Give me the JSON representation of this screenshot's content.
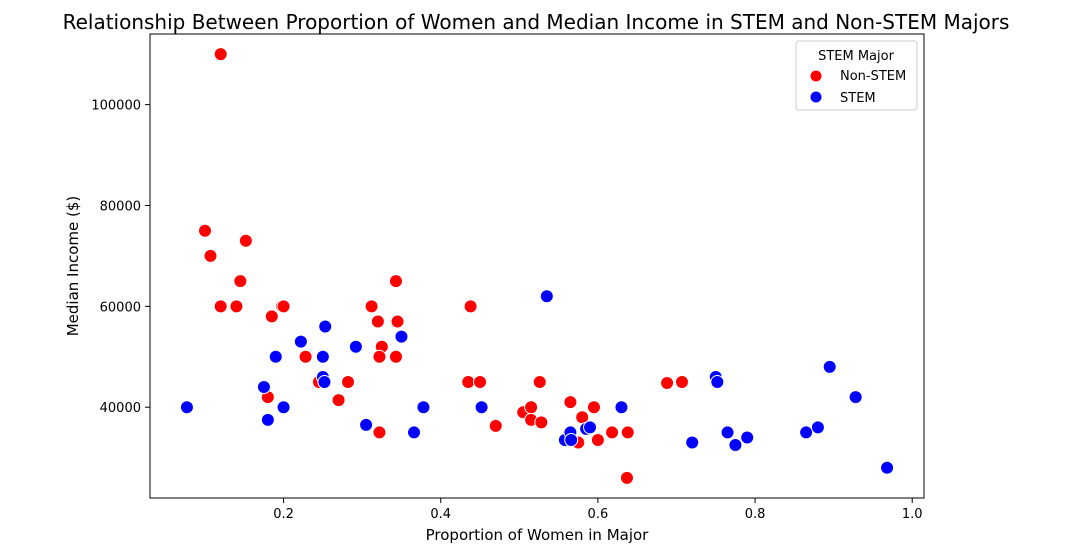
{
  "chart_data": {
    "type": "scatter",
    "title": "Relationship Between Proportion of Women and Median Income in STEM and Non-STEM Majors",
    "xlabel": "Proportion of Women in Major",
    "ylabel": "Median Income ($)",
    "xlim": [
      0.03,
      1.015
    ],
    "ylim": [
      22000,
      114000
    ],
    "xticks": [
      0.2,
      0.4,
      0.6,
      0.8,
      1.0
    ],
    "xtick_labels": [
      "0.2",
      "0.4",
      "0.6",
      "0.8",
      "1.0"
    ],
    "yticks": [
      40000,
      60000,
      80000,
      100000
    ],
    "ytick_labels": [
      "40000",
      "60000",
      "80000",
      "100000"
    ],
    "grid": false,
    "legend": {
      "title": "STEM Major",
      "placement": "top-right",
      "entries": [
        "Non-STEM",
        "STEM"
      ]
    },
    "series": [
      {
        "name": "Non-STEM",
        "color": "#ff0000",
        "points": [
          [
            0.12,
            110000
          ],
          [
            0.1,
            75000
          ],
          [
            0.107,
            70000
          ],
          [
            0.152,
            73000
          ],
          [
            0.145,
            65000
          ],
          [
            0.12,
            60000
          ],
          [
            0.14,
            60000
          ],
          [
            0.198,
            60000
          ],
          [
            0.2,
            60000
          ],
          [
            0.185,
            58000
          ],
          [
            0.228,
            50000
          ],
          [
            0.245,
            45000
          ],
          [
            0.18,
            42000
          ],
          [
            0.282,
            45000
          ],
          [
            0.27,
            41400
          ],
          [
            0.322,
            35000
          ],
          [
            0.312,
            60000
          ],
          [
            0.32,
            57000
          ],
          [
            0.345,
            57000
          ],
          [
            0.343,
            65000
          ],
          [
            0.325,
            52000
          ],
          [
            0.322,
            50000
          ],
          [
            0.343,
            50000
          ],
          [
            0.438,
            60000
          ],
          [
            0.435,
            45000
          ],
          [
            0.45,
            45000
          ],
          [
            0.47,
            36300
          ],
          [
            0.505,
            39000
          ],
          [
            0.515,
            40000
          ],
          [
            0.515,
            37500
          ],
          [
            0.528,
            37000
          ],
          [
            0.526,
            45000
          ],
          [
            0.565,
            41000
          ],
          [
            0.58,
            38000
          ],
          [
            0.575,
            33000
          ],
          [
            0.595,
            40000
          ],
          [
            0.6,
            33500
          ],
          [
            0.618,
            35000
          ],
          [
            0.638,
            35000
          ],
          [
            0.637,
            26000
          ],
          [
            0.688,
            44800
          ],
          [
            0.707,
            45000
          ]
        ]
      },
      {
        "name": "STEM",
        "color": "#0000ff",
        "points": [
          [
            0.077,
            40000
          ],
          [
            0.175,
            44000
          ],
          [
            0.18,
            37500
          ],
          [
            0.19,
            50000
          ],
          [
            0.2,
            40000
          ],
          [
            0.222,
            53000
          ],
          [
            0.25,
            46000
          ],
          [
            0.252,
            45000
          ],
          [
            0.25,
            50000
          ],
          [
            0.253,
            56000
          ],
          [
            0.292,
            52000
          ],
          [
            0.305,
            36500
          ],
          [
            0.35,
            54000
          ],
          [
            0.366,
            35000
          ],
          [
            0.378,
            40000
          ],
          [
            0.452,
            40000
          ],
          [
            0.535,
            62000
          ],
          [
            0.558,
            33500
          ],
          [
            0.565,
            35000
          ],
          [
            0.566,
            33500
          ],
          [
            0.585,
            35700
          ],
          [
            0.59,
            36000
          ],
          [
            0.63,
            40000
          ],
          [
            0.72,
            33000
          ],
          [
            0.75,
            46000
          ],
          [
            0.752,
            45000
          ],
          [
            0.765,
            35000
          ],
          [
            0.775,
            32500
          ],
          [
            0.79,
            34000
          ],
          [
            0.865,
            35000
          ],
          [
            0.88,
            36000
          ],
          [
            0.895,
            48000
          ],
          [
            0.928,
            42000
          ],
          [
            0.968,
            28000
          ]
        ]
      }
    ]
  }
}
